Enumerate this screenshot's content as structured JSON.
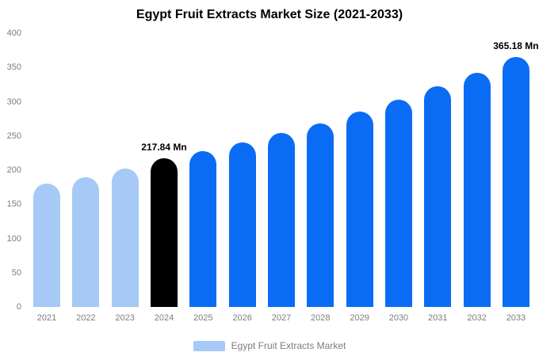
{
  "chart_data": {
    "type": "bar",
    "title": "Egypt Fruit Extracts Market Size (2021-2033)",
    "categories": [
      "2021",
      "2022",
      "2023",
      "2024",
      "2025",
      "2026",
      "2027",
      "2028",
      "2029",
      "2030",
      "2031",
      "2032",
      "2033"
    ],
    "values": [
      180,
      190,
      202,
      217.84,
      228,
      240,
      254,
      268,
      285,
      303,
      322,
      342,
      365.18
    ],
    "bar_colors": [
      "#A6C9F6",
      "#A6C9F6",
      "#A6C9F6",
      "#000000",
      "#0A6CF5",
      "#0A6CF5",
      "#0A6CF5",
      "#0A6CF5",
      "#0A6CF5",
      "#0A6CF5",
      "#0A6CF5",
      "#0A6CF5",
      "#0A6CF5"
    ],
    "ylim": [
      0,
      400
    ],
    "yticks": [
      0,
      50,
      100,
      150,
      200,
      250,
      300,
      350,
      400
    ],
    "grid": false,
    "annotations": [
      {
        "index": 3,
        "text": "217.84 Mn"
      },
      {
        "index": 12,
        "text": "365.18 Mn"
      }
    ],
    "legend_position": "bottom",
    "legend": [
      {
        "label": "Egypt Fruit Extracts Market",
        "color": "#A6C9F6"
      }
    ]
  },
  "colors": {
    "light_blue": "#A6C9F6",
    "bright_blue": "#0A6CF5",
    "highlight_black": "#000000",
    "axis_text": "#7d7d7d",
    "background": "#ffffff"
  }
}
